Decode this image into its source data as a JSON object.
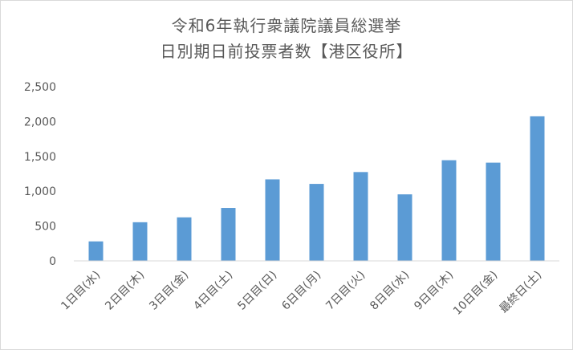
{
  "chart_data": {
    "type": "bar",
    "title_lines": [
      "令和6年執行衆議院議員総選挙",
      "日別期日前投票者数【港区役所】"
    ],
    "categories": [
      "1日目(水)",
      "2日目(木)",
      "3日目(金)",
      "4日目(土)",
      "5日目(日)",
      "6日目(月)",
      "7日目(火)",
      "8日目(水)",
      "9日目(木)",
      "10日目(金)",
      "最終日(土)"
    ],
    "values": [
      280,
      555,
      625,
      760,
      1170,
      1105,
      1275,
      955,
      1445,
      1410,
      2075
    ],
    "y_ticks": [
      "0",
      "500",
      "1,000",
      "1,500",
      "2,000",
      "2,500"
    ],
    "ylim": [
      0,
      2500
    ],
    "grid": false,
    "legend": "none",
    "bar_color": "#5b9bd5",
    "axis_color": "#d9d9d9",
    "text_color": "#595959"
  }
}
